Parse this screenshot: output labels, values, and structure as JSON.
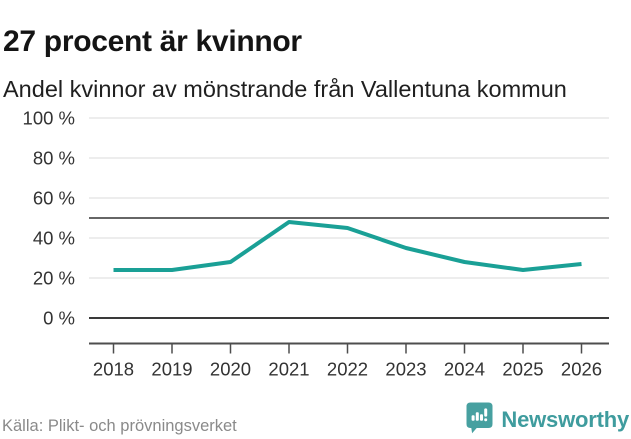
{
  "header": {
    "title": "27 procent är kvinnor",
    "subtitle": "Andel kvinnor av mönstrande från Vallentuna kommun"
  },
  "chart_data": {
    "type": "line",
    "title": "27 procent är kvinnor",
    "subtitle": "Andel kvinnor av mönstrande från Vallentuna kommun",
    "categories": [
      "2018",
      "2019",
      "2020",
      "2021",
      "2022",
      "2023",
      "2024",
      "2025",
      "2026"
    ],
    "series": [
      {
        "name": "Andel kvinnor av mönstrande",
        "color": "#1aa096",
        "values": [
          24,
          24,
          28,
          48,
          45,
          35,
          28,
          24,
          27
        ]
      }
    ],
    "unit": "%",
    "ylim": [
      0,
      100
    ],
    "y_tick_values": [
      0,
      20,
      40,
      60,
      80,
      100
    ],
    "y_tick_labels": [
      "0 %",
      "20 %",
      "40 %",
      "60 %",
      "80 %",
      "100 %"
    ],
    "reference_line_value": 50,
    "grid": true,
    "legend": false,
    "xlabel": "",
    "ylabel": ""
  },
  "footer": {
    "source": "Källa: Plikt- och prövningsverket",
    "brand_name": "Newsworthy"
  },
  "colors": {
    "accent_line": "#1aa096",
    "logo_teal": "#47a0a0",
    "logo_text": "#3f9c9e",
    "grid": "#e2e2e2",
    "zero_line": "#3a3a3a",
    "reference_line": "#666666",
    "axis": "#4d4d4d",
    "tick_text": "#333333",
    "title_text": "#141414",
    "muted_text": "#8a8a8a"
  }
}
